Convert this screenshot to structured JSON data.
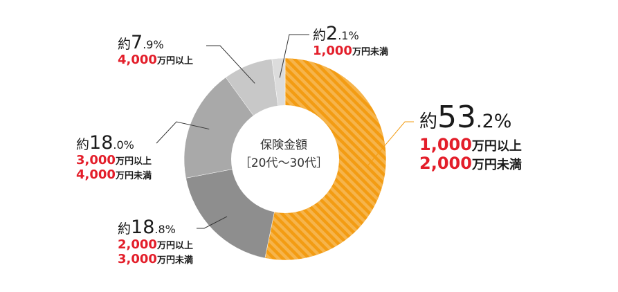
{
  "chart_data": {
    "type": "pie",
    "center_label": [
      "保険金額",
      "［20代～30代］"
    ],
    "slices": [
      {
        "prefix": "約",
        "int": "53",
        "dec": ".2%",
        "value": 53.2,
        "lines": [
          {
            "num": "1,000",
            "unit": "万円以上"
          },
          {
            "num": "2,000",
            "unit": "万円未満"
          }
        ],
        "color": "#f39c13",
        "stripe": "#f6b44b"
      },
      {
        "prefix": "約",
        "int": "18",
        "dec": ".8%",
        "value": 18.8,
        "lines": [
          {
            "num": "2,000",
            "unit": "万円以上"
          },
          {
            "num": "3,000",
            "unit": "万円未満"
          }
        ],
        "color": "#8e8e8e"
      },
      {
        "prefix": "約",
        "int": "18",
        "dec": ".0%",
        "value": 18.0,
        "lines": [
          {
            "num": "3,000",
            "unit": "万円以上"
          },
          {
            "num": "4,000",
            "unit": "万円未満"
          }
        ],
        "color": "#a9a9a9"
      },
      {
        "prefix": "約",
        "int": "7",
        "dec": ".9%",
        "value": 7.9,
        "lines": [
          {
            "num": "4,000",
            "unit": "万円以上"
          }
        ],
        "color": "#c8c8c8"
      },
      {
        "prefix": "約",
        "int": "2",
        "dec": ".1%",
        "value": 2.1,
        "lines": [
          {
            "num": "1,000",
            "unit": "万円未満"
          }
        ],
        "color": "#dcdcdc"
      }
    ]
  }
}
